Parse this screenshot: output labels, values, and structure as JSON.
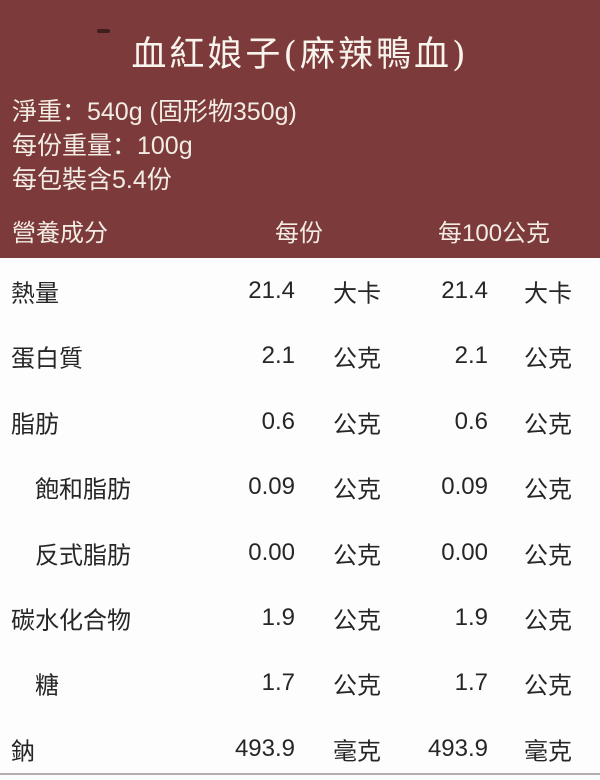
{
  "header": {
    "title": "血紅娘子(麻辣鴨血)",
    "info_lines": {
      "net_weight": "淨重：540g (固形物350g)",
      "per_serving_weight": "每份重量：100g",
      "servings_per_pack": "每包裝含5.4份"
    },
    "columns": {
      "nutrient": "營養成分",
      "per_serving": "每份",
      "per_100g": "每100公克"
    }
  },
  "nutrition": {
    "rows": [
      {
        "label": "熱量",
        "per_serving_value": "21.4",
        "per_serving_unit": "大卡",
        "per_100g_value": "21.4",
        "per_100g_unit": "大卡"
      },
      {
        "label": "蛋白質",
        "per_serving_value": "2.1",
        "per_serving_unit": "公克",
        "per_100g_value": "2.1",
        "per_100g_unit": "公克"
      },
      {
        "label": "脂肪",
        "per_serving_value": "0.6",
        "per_serving_unit": "公克",
        "per_100g_value": "0.6",
        "per_100g_unit": "公克"
      },
      {
        "label": "飽和脂肪",
        "per_serving_value": "0.09",
        "per_serving_unit": "公克",
        "per_100g_value": "0.09",
        "per_100g_unit": "公克"
      },
      {
        "label": "反式脂肪",
        "per_serving_value": "0.00",
        "per_serving_unit": "公克",
        "per_100g_value": "0.00",
        "per_100g_unit": "公克"
      },
      {
        "label": "碳水化合物",
        "per_serving_value": "1.9",
        "per_serving_unit": "公克",
        "per_100g_value": "1.9",
        "per_100g_unit": "公克"
      },
      {
        "label": "糖",
        "per_serving_value": "1.7",
        "per_serving_unit": "公克",
        "per_100g_value": "1.7",
        "per_100g_unit": "公克"
      },
      {
        "label": "鈉",
        "per_serving_value": "493.9",
        "per_serving_unit": "毫克",
        "per_100g_value": "493.9",
        "per_100g_unit": "毫克"
      }
    ]
  },
  "colors": {
    "header_bg": "#7c3a3a",
    "header_text": "#f2ece4",
    "table_text": "#262626",
    "divider": "#b3acb0",
    "dash_mark": "#3f1e1e"
  }
}
